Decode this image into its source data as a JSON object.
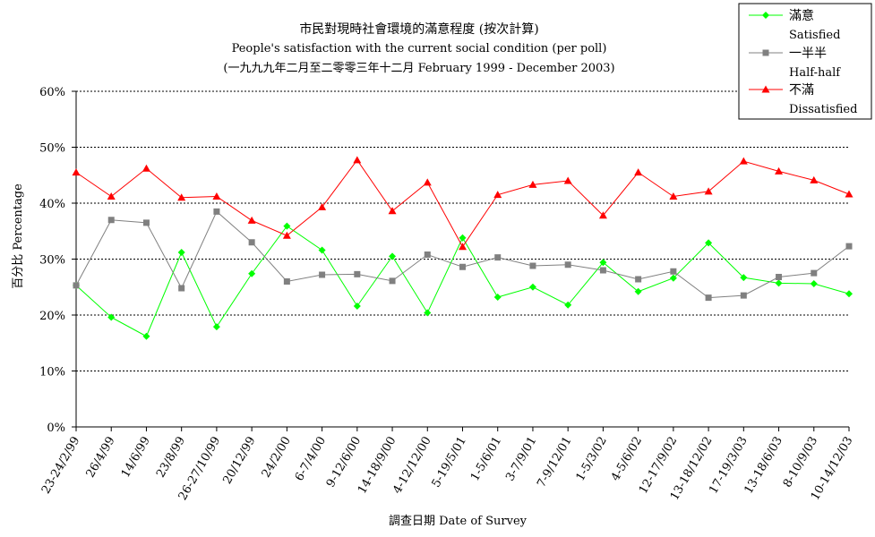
{
  "chart_data": {
    "type": "line",
    "title": "市民對現時社會環境的滿意程度 (按次計算)",
    "subtitle": "People's satisfaction with the current social condition (per poll)",
    "subtitle2": "(一九九九年二月至二零零三年十二月 February 1999 - December 2003)",
    "xlabel": "調查日期 Date of Survey",
    "ylabel": "百分比 Percentage",
    "ylim": [
      0,
      60
    ],
    "yticks": [
      "0%",
      "10%",
      "20%",
      "30%",
      "40%",
      "50%",
      "60%"
    ],
    "grid": true,
    "legend_position": "top-right",
    "categories": [
      "23-24/2/99",
      "26/4/99",
      "14/6/99",
      "23/8/99",
      "26-27/10/99",
      "20/12/99",
      "24/2/00",
      "6-7/4/00",
      "9-12/6/00",
      "14-18/9/00",
      "4-12/12/00",
      "5-19/5/01",
      "1-5/6/01",
      "3-7/9/01",
      "7-9/12/01",
      "1-5/3/02",
      "4-5/6/02",
      "12-17/9/02",
      "13-18/12/02",
      "17-19/3/03",
      "13-18/6/03",
      "8-10/9/03",
      "10-14/12/03"
    ],
    "series": [
      {
        "name": "滿意",
        "name_en": "Satisfied",
        "color": "#00ff00",
        "marker": "diamond",
        "values": [
          25.3,
          19.6,
          16.2,
          31.2,
          17.9,
          27.4,
          35.9,
          31.6,
          21.6,
          30.5,
          20.4,
          33.8,
          23.2,
          25.0,
          21.8,
          29.4,
          24.2,
          26.6,
          32.9,
          26.7,
          25.7,
          25.6,
          23.8
        ]
      },
      {
        "name": "一半半",
        "name_en": "Half-half",
        "color": "#808080",
        "marker": "square",
        "values": [
          25.3,
          37.0,
          36.5,
          24.8,
          38.5,
          33.0,
          26.0,
          27.2,
          27.3,
          26.1,
          30.8,
          28.6,
          30.3,
          28.8,
          29.0,
          28.0,
          26.4,
          27.8,
          23.1,
          23.5,
          26.8,
          27.5,
          32.3
        ]
      },
      {
        "name": "不滿",
        "name_en": "Dissatisfied",
        "color": "#ff0000",
        "marker": "triangle",
        "values": [
          45.5,
          41.2,
          46.2,
          41.0,
          41.2,
          36.9,
          34.2,
          39.3,
          47.7,
          38.6,
          43.7,
          32.2,
          41.5,
          43.3,
          44.0,
          37.8,
          45.5,
          41.2,
          42.1,
          47.5,
          45.7,
          44.1,
          41.6
        ]
      }
    ]
  }
}
